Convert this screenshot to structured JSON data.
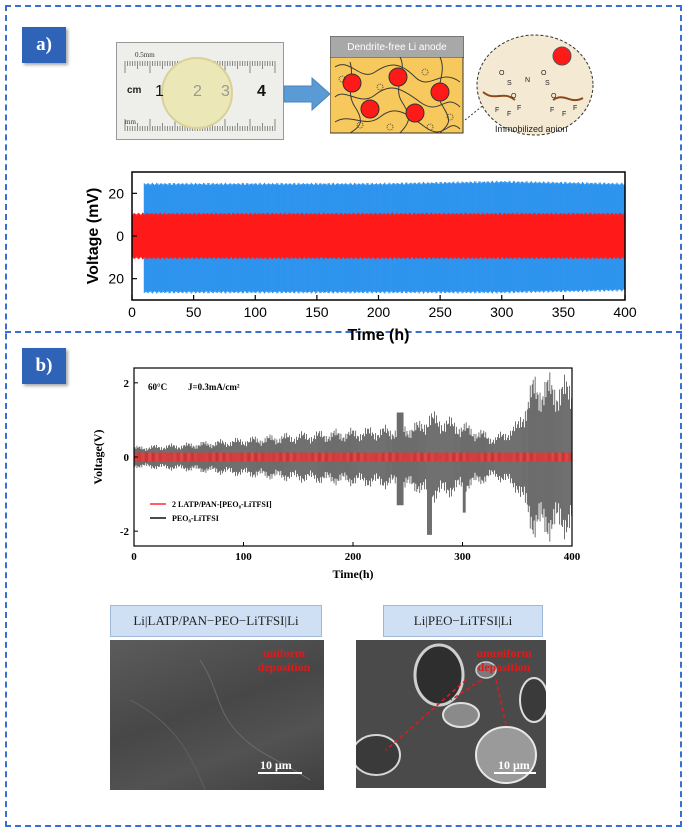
{
  "panel_a": {
    "tag": "a)",
    "ruler": {
      "top_label": "0.5mm",
      "unit": "cm",
      "ticks": [
        "1",
        "2",
        "3",
        "4"
      ],
      "bottom_label": "mm"
    },
    "schematic": {
      "title": "Dendrite-free Li anode",
      "inset_caption": "Immobilized anion",
      "atoms": [
        "N",
        "S",
        "S",
        "F",
        "F",
        "F",
        "F",
        "F",
        "F",
        "O",
        "O",
        "O",
        "O"
      ]
    },
    "chart_data": {
      "type": "area",
      "xlabel": "Time (h)",
      "ylabel": "Voltage (mV)",
      "xlim": [
        0,
        400
      ],
      "x_ticks": [
        "0",
        "50",
        "100",
        "150",
        "200",
        "250",
        "300",
        "350",
        "400"
      ],
      "y_ticks": [
        "20",
        "0",
        "20"
      ],
      "grid": false,
      "series": [
        {
          "color": "#2e94ee",
          "x": [
            10,
            100,
            200,
            300,
            400
          ],
          "upper": [
            25,
            25,
            25,
            26,
            25
          ],
          "lower": [
            -27,
            -27,
            -27,
            -27,
            -26
          ]
        },
        {
          "color": "#ff1a1a",
          "x": [
            0,
            100,
            200,
            300,
            400
          ],
          "upper": [
            11,
            11,
            11,
            11,
            11
          ],
          "lower": [
            -11,
            -11,
            -11,
            -11,
            -11
          ]
        }
      ]
    }
  },
  "panel_b": {
    "tag": "b)",
    "chart_data": {
      "type": "line",
      "xlabel": "Time(h)",
      "ylabel": "Voltage(V)",
      "xlim": [
        0,
        400
      ],
      "ylim": [
        -2.4,
        2.4
      ],
      "x_ticks": [
        "0",
        "100",
        "200",
        "300",
        "400"
      ],
      "y_ticks": [
        "2",
        "0",
        "-2"
      ],
      "annotation_temp": "60°C",
      "annotation_current": "J=0.3mA/cm²",
      "series": [
        {
          "name": "2 LATP/PAN-[PEO₈-LiTFSI]",
          "color": "#ff2b2b",
          "x": [
            0,
            100,
            200,
            300,
            400
          ],
          "amplitude": [
            0.12,
            0.12,
            0.12,
            0.12,
            0.12
          ]
        },
        {
          "name": "PEO₈-LiTFSI",
          "color": "#111111",
          "x": [
            0,
            50,
            100,
            150,
            200,
            240,
            260,
            270,
            300,
            330,
            350,
            365,
            380,
            400
          ],
          "amplitude": [
            0.3,
            0.4,
            0.55,
            0.7,
            0.8,
            0.9,
            1.0,
            1.3,
            1.0,
            0.6,
            1.0,
            2.3,
            2.3,
            2.2
          ]
        }
      ]
    },
    "sem_left": {
      "caption": "Li|LATP/PAN−PEO−LiTFSI|Li",
      "annotation": [
        "uniform",
        "deposition"
      ],
      "scale": "10 μm"
    },
    "sem_right": {
      "caption": "Li|PEO−LiTFSI|Li",
      "annotation": [
        "ununiform",
        "deposition"
      ],
      "scale": "10 μm"
    }
  }
}
